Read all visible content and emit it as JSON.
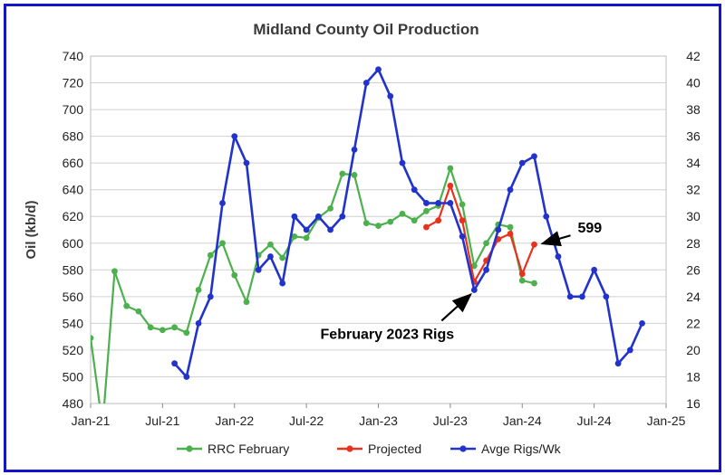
{
  "chart_data": {
    "type": "line",
    "title": "Midland County Oil Production",
    "ylabel": "Oil (kb/d)",
    "y2label": "",
    "ylim": [
      480,
      740
    ],
    "y2lim": [
      16,
      42
    ],
    "yticks": [
      480,
      500,
      520,
      540,
      560,
      580,
      600,
      620,
      640,
      660,
      680,
      700,
      720,
      740
    ],
    "y2ticks": [
      16,
      18,
      20,
      22,
      24,
      26,
      28,
      30,
      32,
      34,
      36,
      38,
      40,
      42
    ],
    "x_start": "Jan-21",
    "xticks": [
      "Jan-21",
      "Jul-21",
      "Jan-22",
      "Jul-22",
      "Jan-23",
      "Jul-23",
      "Jan-24",
      "Jul-24",
      "Jan-25"
    ],
    "grid": "horizontal",
    "legend_position": "bottom",
    "series": [
      {
        "name": "RRC February",
        "axis": "left",
        "color": "#4cb04c",
        "x": [
          "Jan-21",
          "Feb-21",
          "Mar-21",
          "Apr-21",
          "May-21",
          "Jun-21",
          "Jul-21",
          "Aug-21",
          "Sep-21",
          "Oct-21",
          "Nov-21",
          "Dec-21",
          "Jan-22",
          "Feb-22",
          "Mar-22",
          "Apr-22",
          "May-22",
          "Jun-22",
          "Jul-22",
          "Aug-22",
          "Sep-22",
          "Oct-22",
          "Nov-22",
          "Dec-22",
          "Jan-23",
          "Feb-23",
          "Mar-23",
          "Apr-23",
          "May-23",
          "Jun-23",
          "Jul-23",
          "Aug-23",
          "Sep-23",
          "Oct-23",
          "Nov-23",
          "Dec-23",
          "Jan-24",
          "Feb-24"
        ],
        "values": [
          529,
          463,
          579,
          553,
          549,
          537,
          535,
          537,
          533,
          565,
          591,
          600,
          576,
          556,
          591,
          599,
          589,
          605,
          604,
          619,
          626,
          652,
          651,
          615,
          613,
          616,
          622,
          617,
          624,
          628,
          656,
          629,
          583,
          600,
          614,
          612,
          572,
          570
        ]
      },
      {
        "name": "Projected",
        "axis": "left",
        "color": "#e8321e",
        "x": [
          "May-23",
          "Jun-23",
          "Jul-23",
          "Aug-23",
          "Sep-23",
          "Oct-23",
          "Nov-23",
          "Dec-23",
          "Jan-24",
          "Feb-24"
        ],
        "values": [
          612,
          617,
          643,
          617,
          571,
          587,
          603,
          607,
          577,
          599
        ]
      },
      {
        "name": "Avge Rigs/Wk",
        "axis": "right",
        "color": "#2233cc",
        "x": [
          "Aug-21",
          "Sep-21",
          "Oct-21",
          "Nov-21",
          "Dec-21",
          "Jan-22",
          "Feb-22",
          "Mar-22",
          "Apr-22",
          "May-22",
          "Jun-22",
          "Jul-22",
          "Aug-22",
          "Sep-22",
          "Oct-22",
          "Nov-22",
          "Dec-22",
          "Jan-23",
          "Feb-23",
          "Mar-23",
          "Apr-23",
          "May-23",
          "Jun-23",
          "Jul-23",
          "Aug-23",
          "Sep-23",
          "Oct-23",
          "Nov-23",
          "Dec-23",
          "Jan-24",
          "Feb-24",
          "Mar-24",
          "Apr-24",
          "May-24",
          "Jun-24",
          "Jul-24",
          "Aug-24",
          "Sep-24",
          "Oct-24",
          "Nov-24"
        ],
        "values": [
          19,
          18,
          22,
          24,
          31,
          36,
          34,
          26,
          27,
          25,
          30,
          29,
          30,
          29,
          30,
          35,
          40,
          41,
          39,
          34,
          32,
          31,
          31,
          31,
          28.5,
          24.5,
          26,
          29,
          32,
          34,
          34.5,
          30,
          27,
          24,
          24,
          26,
          24,
          19,
          20,
          22
        ]
      }
    ],
    "annotations": [
      {
        "text": "599",
        "label": "599",
        "point_series": "Projected",
        "x": "Feb-24",
        "y": 599
      },
      {
        "text": "February 2023 Rigs",
        "label": "February 2023 Rigs",
        "point_series": "Avge Rigs/Wk",
        "x": "Sep-23",
        "y": 24.5
      }
    ]
  }
}
